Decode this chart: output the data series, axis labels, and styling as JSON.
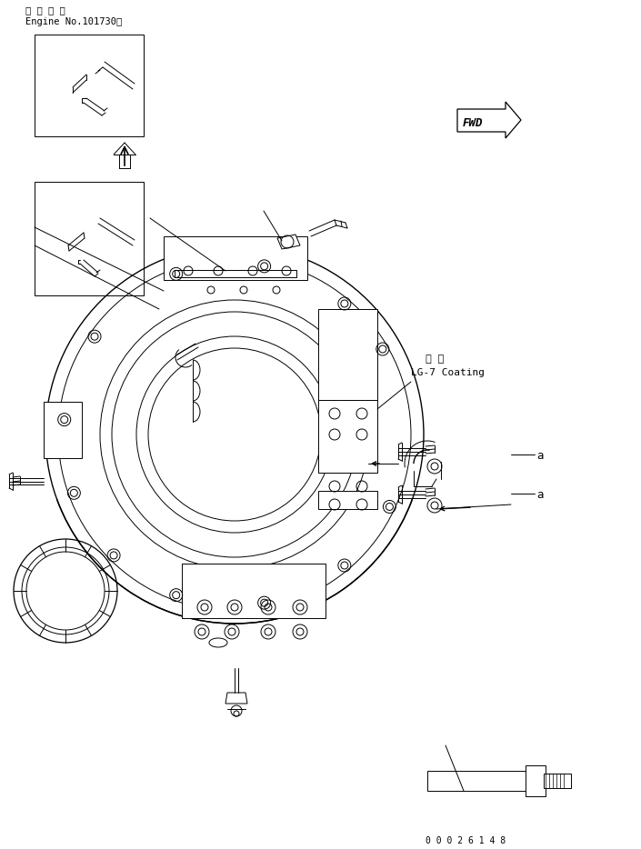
{
  "title_jp": "適 用 号 機",
  "title_en": "Engine No.101730～",
  "coating_jp": "塗 布",
  "coating_en": "LG-7 Coating",
  "fwd_label": "FWD",
  "label_a1": "a",
  "label_a2": "a",
  "doc_number": "0 0 0 2 6 1 4 8",
  "bg_color": "#ffffff",
  "line_color": "#000000",
  "lw": 0.7,
  "fig_width": 7.05,
  "fig_height": 9.34
}
